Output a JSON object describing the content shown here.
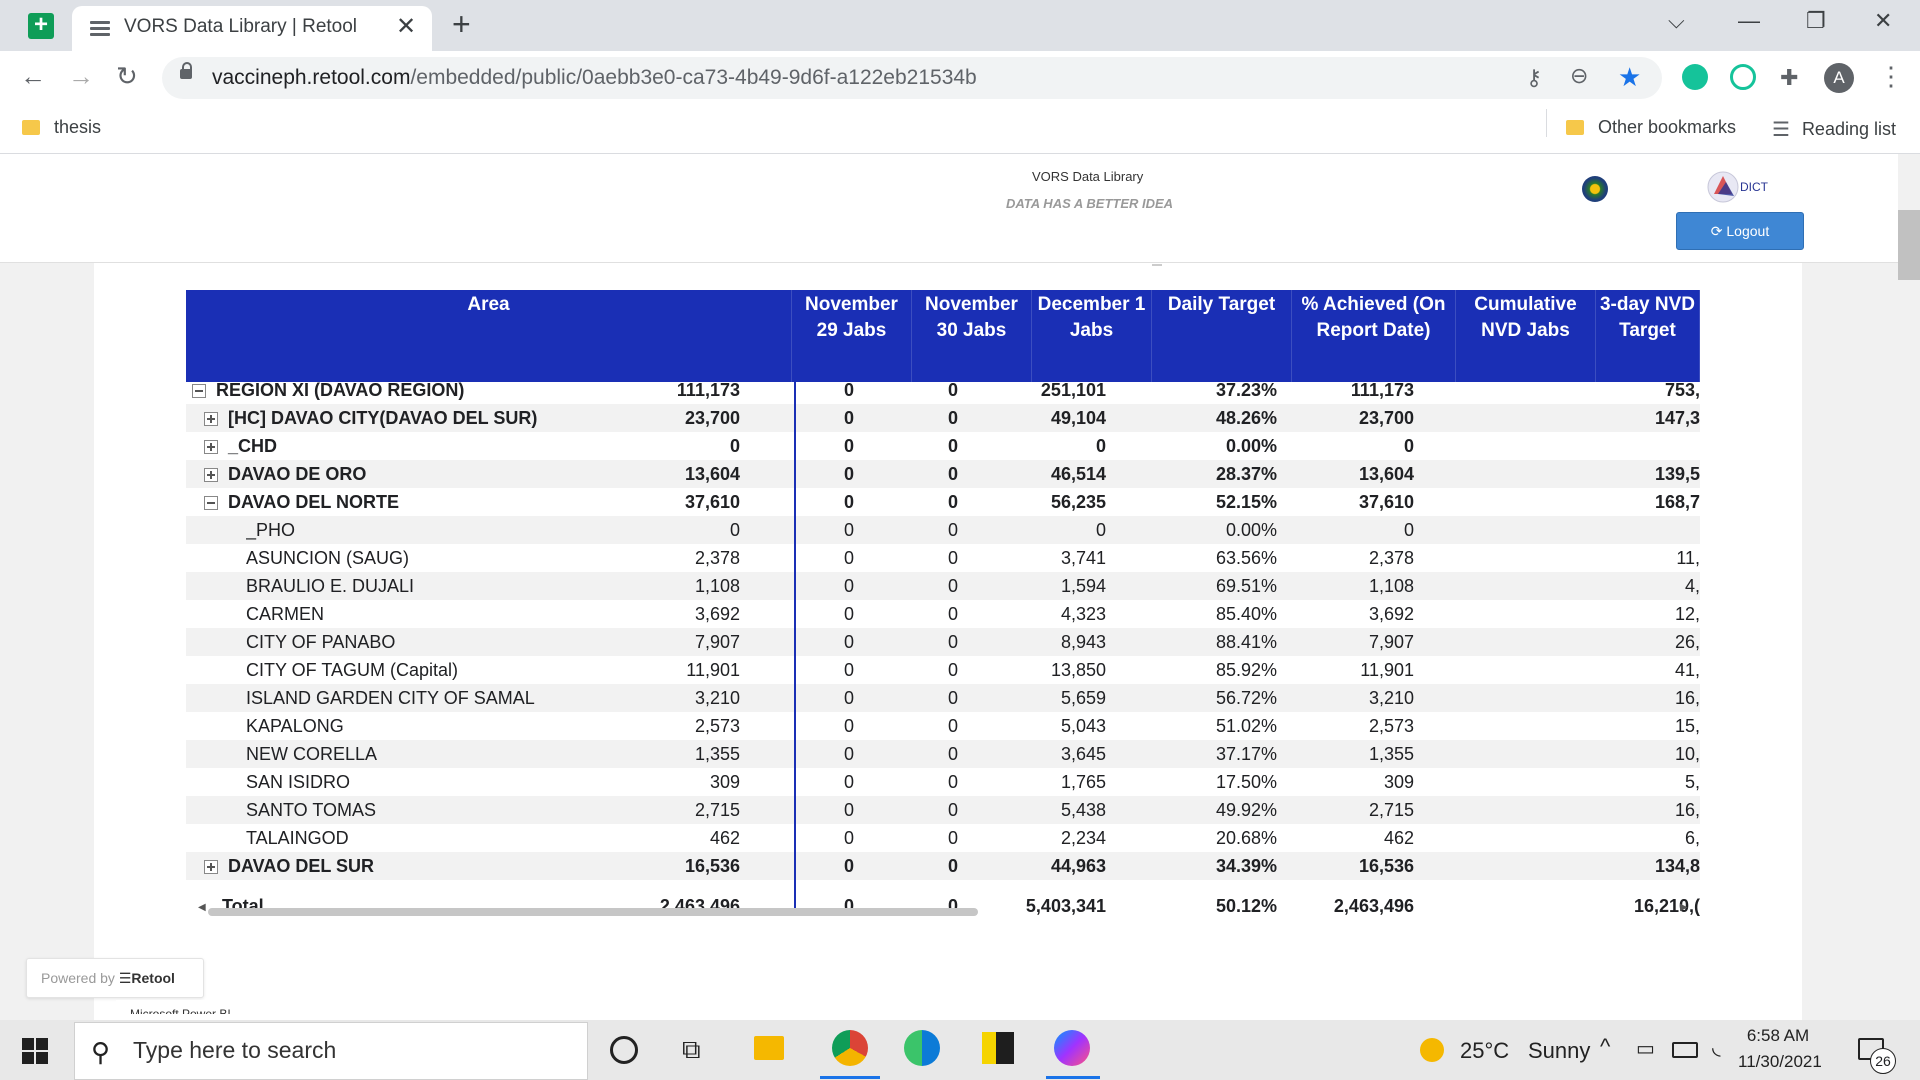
{
  "browser": {
    "tab_title": "VORS Data Library | Retool",
    "url_host": "vaccineph.retool.com",
    "url_path": "/embedded/public/0aebb3e0-ca73-4b49-9d6f-a122eb21534b",
    "bookmarks": [
      {
        "label": "thesis"
      }
    ],
    "other_bookmarks": "Other bookmarks",
    "reading_list": "Reading list",
    "avatar_letter": "A"
  },
  "app": {
    "title": "VORS Data Library",
    "subtitle": "DATA HAS A BETTER IDEA",
    "logout_label": "Logout",
    "dict_logo_text": "DICT"
  },
  "table": {
    "columns": [
      "Area",
      "November 29 Jabs",
      "November 30 Jabs",
      "December 1 Jabs",
      "Daily Target",
      "% Achieved (On Report Date)",
      "Cumulative NVD Jabs",
      "3-day NVD Target"
    ],
    "rows": [
      {
        "area": "REGION XI (DAVAO REGION)",
        "level": 0,
        "toggle": "minus",
        "bold": true,
        "values": [
          "111,173",
          "0",
          "0",
          "251,101",
          "37.23%",
          "111,173",
          "753,"
        ]
      },
      {
        "area": "[HC] DAVAO CITY(DAVAO DEL SUR)",
        "level": 1,
        "toggle": "plus",
        "bold": true,
        "values": [
          "23,700",
          "0",
          "0",
          "49,104",
          "48.26%",
          "23,700",
          "147,3"
        ]
      },
      {
        "area": "_CHD",
        "level": 1,
        "toggle": "plus",
        "bold": true,
        "values": [
          "0",
          "0",
          "0",
          "0",
          "0.00%",
          "0",
          ""
        ]
      },
      {
        "area": "DAVAO DE ORO",
        "level": 1,
        "toggle": "plus",
        "bold": true,
        "values": [
          "13,604",
          "0",
          "0",
          "46,514",
          "28.37%",
          "13,604",
          "139,5"
        ]
      },
      {
        "area": "DAVAO DEL NORTE",
        "level": 1,
        "toggle": "minus",
        "bold": true,
        "values": [
          "37,610",
          "0",
          "0",
          "56,235",
          "52.15%",
          "37,610",
          "168,7"
        ]
      },
      {
        "area": "_PHO",
        "level": 2,
        "toggle": "",
        "bold": false,
        "values": [
          "0",
          "0",
          "0",
          "0",
          "0.00%",
          "0",
          ""
        ]
      },
      {
        "area": "ASUNCION (SAUG)",
        "level": 2,
        "toggle": "",
        "bold": false,
        "values": [
          "2,378",
          "0",
          "0",
          "3,741",
          "63.56%",
          "2,378",
          "11,"
        ]
      },
      {
        "area": "BRAULIO E. DUJALI",
        "level": 2,
        "toggle": "",
        "bold": false,
        "values": [
          "1,108",
          "0",
          "0",
          "1,594",
          "69.51%",
          "1,108",
          "4,"
        ]
      },
      {
        "area": "CARMEN",
        "level": 2,
        "toggle": "",
        "bold": false,
        "values": [
          "3,692",
          "0",
          "0",
          "4,323",
          "85.40%",
          "3,692",
          "12,"
        ]
      },
      {
        "area": "CITY OF PANABO",
        "level": 2,
        "toggle": "",
        "bold": false,
        "values": [
          "7,907",
          "0",
          "0",
          "8,943",
          "88.41%",
          "7,907",
          "26,"
        ]
      },
      {
        "area": "CITY OF TAGUM (Capital)",
        "level": 2,
        "toggle": "",
        "bold": false,
        "values": [
          "11,901",
          "0",
          "0",
          "13,850",
          "85.92%",
          "11,901",
          "41,"
        ]
      },
      {
        "area": "ISLAND GARDEN CITY OF SAMAL",
        "level": 2,
        "toggle": "",
        "bold": false,
        "values": [
          "3,210",
          "0",
          "0",
          "5,659",
          "56.72%",
          "3,210",
          "16,"
        ]
      },
      {
        "area": "KAPALONG",
        "level": 2,
        "toggle": "",
        "bold": false,
        "values": [
          "2,573",
          "0",
          "0",
          "5,043",
          "51.02%",
          "2,573",
          "15,"
        ]
      },
      {
        "area": "NEW CORELLA",
        "level": 2,
        "toggle": "",
        "bold": false,
        "values": [
          "1,355",
          "0",
          "0",
          "3,645",
          "37.17%",
          "1,355",
          "10,"
        ]
      },
      {
        "area": "SAN ISIDRO",
        "level": 2,
        "toggle": "",
        "bold": false,
        "values": [
          "309",
          "0",
          "0",
          "1,765",
          "17.50%",
          "309",
          "5,"
        ]
      },
      {
        "area": "SANTO TOMAS",
        "level": 2,
        "toggle": "",
        "bold": false,
        "values": [
          "2,715",
          "0",
          "0",
          "5,438",
          "49.92%",
          "2,715",
          "16,"
        ]
      },
      {
        "area": "TALAINGOD",
        "level": 2,
        "toggle": "",
        "bold": false,
        "values": [
          "462",
          "0",
          "0",
          "2,234",
          "20.68%",
          "462",
          "6,"
        ]
      },
      {
        "area": "DAVAO DEL SUR",
        "level": 1,
        "toggle": "plus",
        "bold": true,
        "values": [
          "16,536",
          "0",
          "0",
          "44,963",
          "34.39%",
          "16,536",
          "134,8"
        ]
      }
    ],
    "total": {
      "area": "Total",
      "values": [
        "2,463,496",
        "0",
        "0",
        "5,403,341",
        "50.12%",
        "2,463,496",
        "16,210,("
      ]
    }
  },
  "footer": {
    "powered_prefix": "Powered by",
    "powered_brand": "Retool",
    "pbi_label": "Microsoft Power BI"
  },
  "taskbar": {
    "search_placeholder": "Type here to search",
    "weather_temp": "25°C",
    "weather_desc": "Sunny",
    "time": "6:58 AM",
    "date": "11/30/2021",
    "notification_count": "26"
  }
}
